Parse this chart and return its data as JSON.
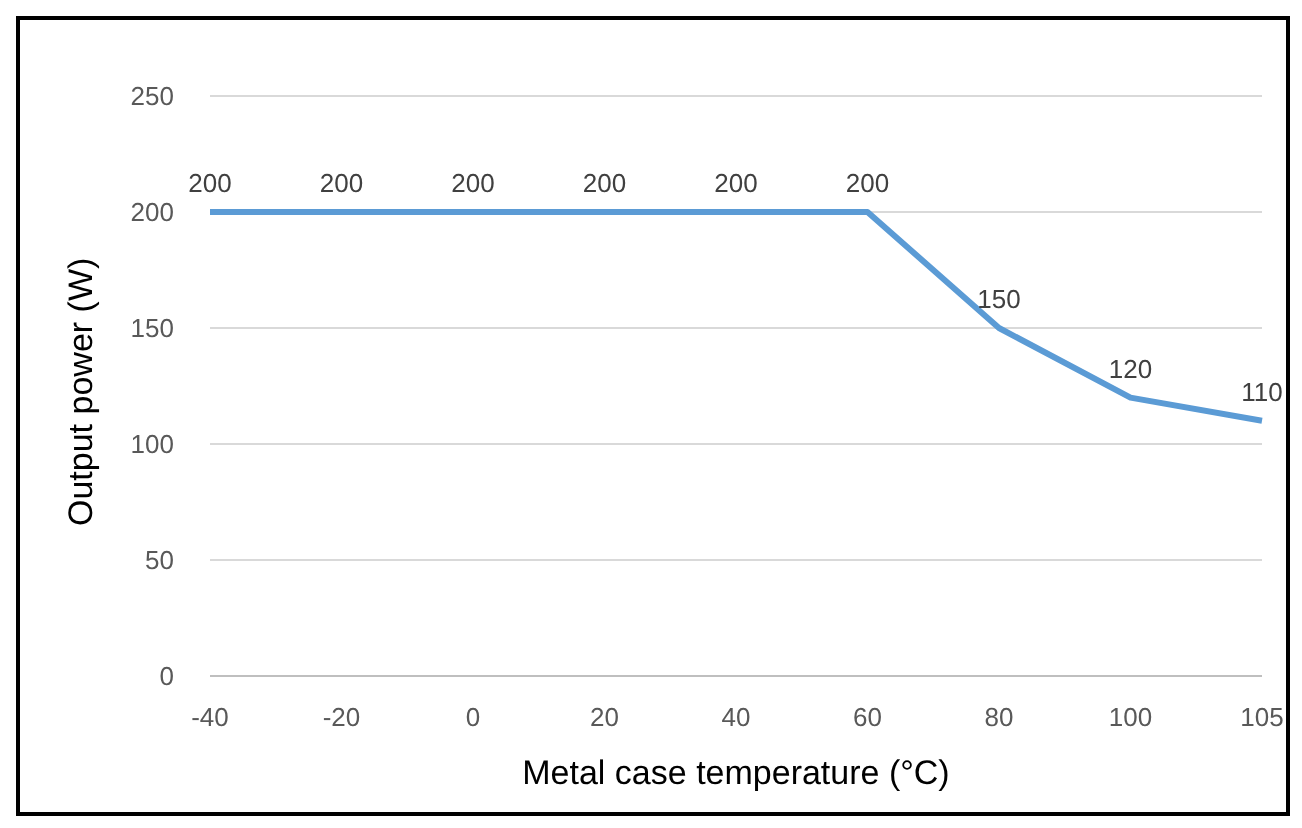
{
  "chart_data": {
    "type": "line",
    "xlabel": "Metal case temperature (°C)",
    "ylabel": "Output power (W)",
    "categories": [
      "-40",
      "-20",
      "0",
      "20",
      "40",
      "60",
      "80",
      "100",
      "105"
    ],
    "series": [
      {
        "color": "#5b9bd5",
        "values": [
          200,
          200,
          200,
          200,
          200,
          200,
          150,
          120,
          110
        ]
      }
    ],
    "ylim": [
      0,
      250
    ],
    "yticks": [
      0,
      50,
      100,
      150,
      200,
      250
    ],
    "grid": "y",
    "marker": "none",
    "line_style": "solid",
    "data_labels": true
  }
}
